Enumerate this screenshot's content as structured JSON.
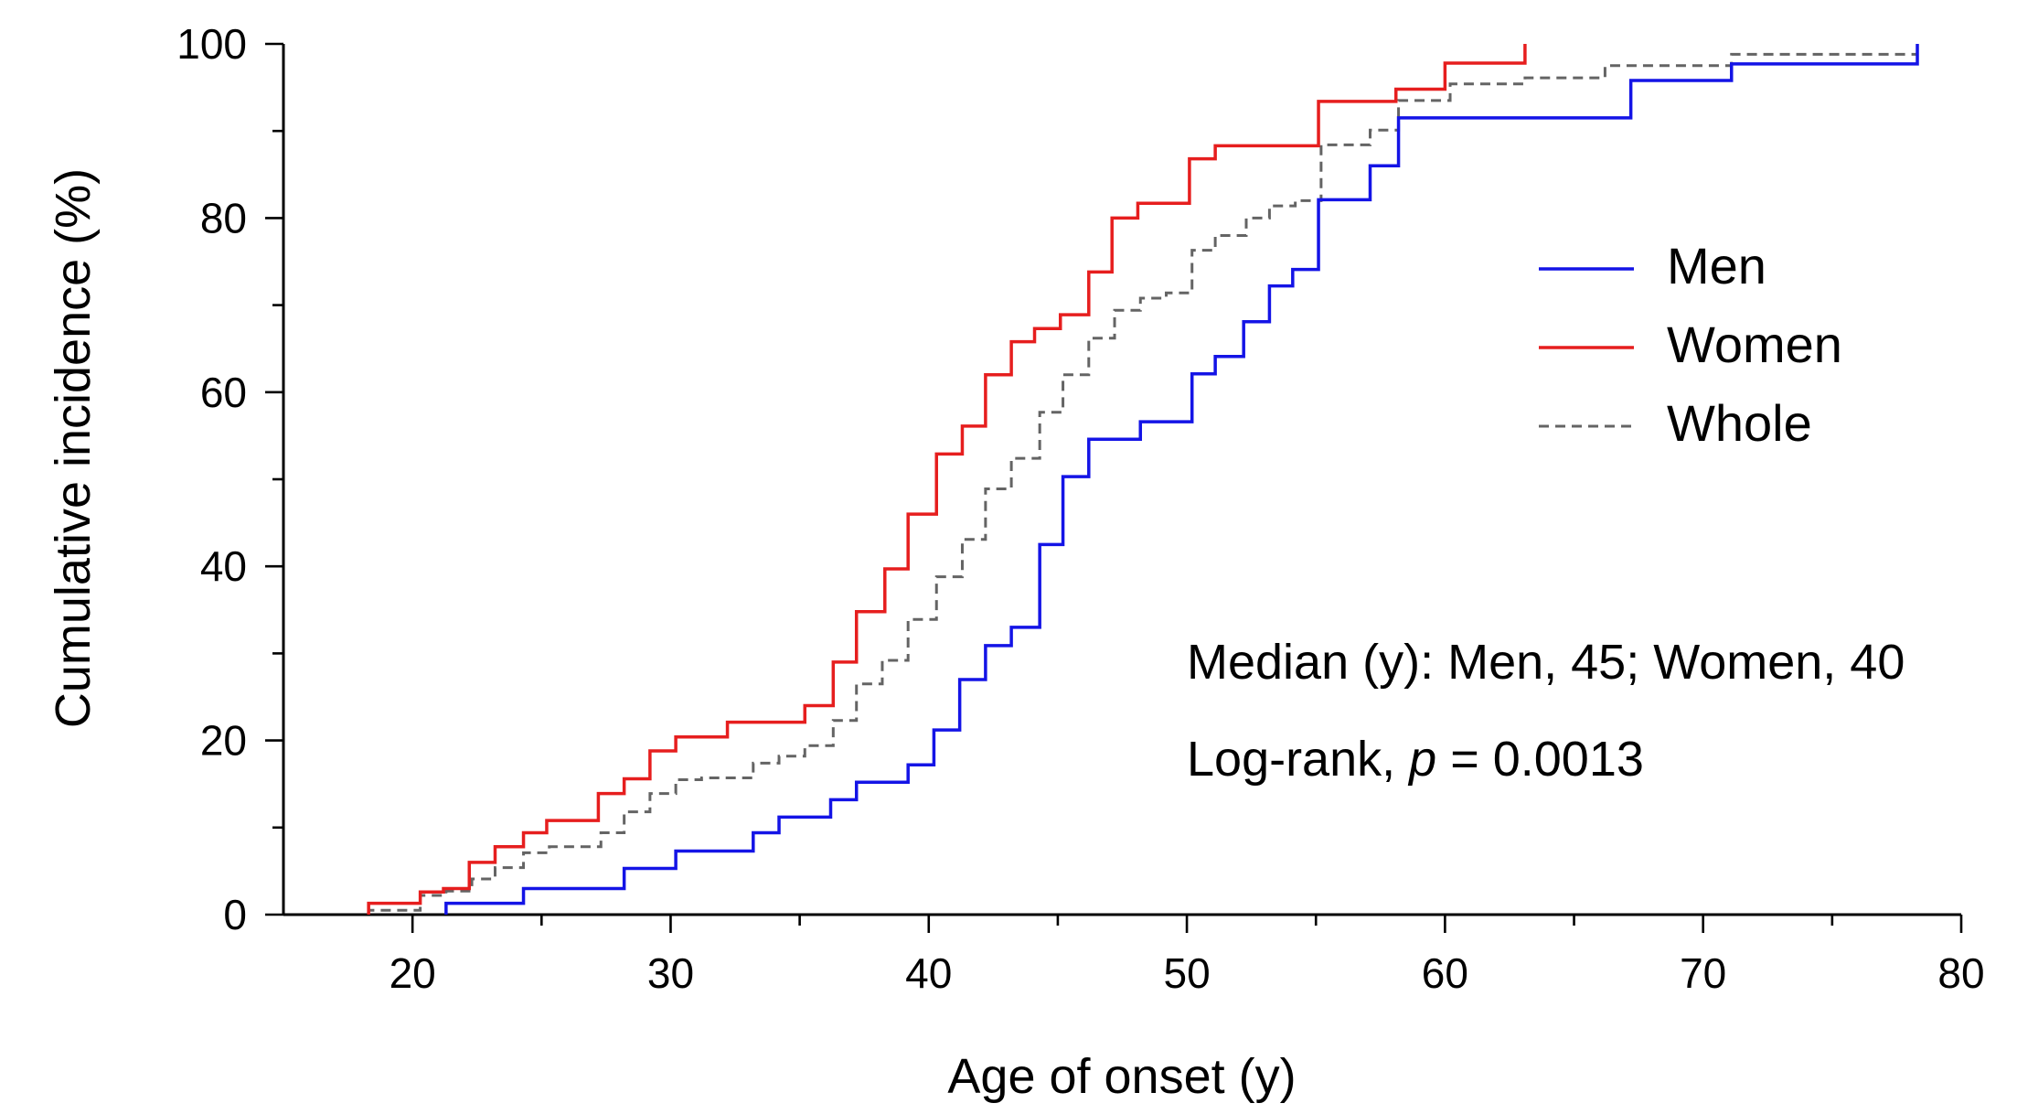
{
  "chart_data": {
    "type": "line",
    "step": true,
    "xlabel": "Age of onset (y)",
    "ylabel": "Cumulative incidence (%)",
    "xlim": [
      15,
      80
    ],
    "ylim": [
      0,
      100
    ],
    "xticks": [
      20,
      30,
      40,
      50,
      60,
      70,
      80
    ],
    "yticks": [
      0,
      20,
      40,
      60,
      80,
      100
    ],
    "xtick_labels": [
      "20",
      "30",
      "40",
      "50",
      "60",
      "70",
      "80"
    ],
    "ytick_labels": [
      "0",
      "20",
      "40",
      "60",
      "80",
      "100"
    ],
    "grid": false,
    "legend_position": "right",
    "series": [
      {
        "name": "Men",
        "color": "#1414e6",
        "dash": "solid",
        "x": [
          21.3,
          24.3,
          28.2,
          30.2,
          33.2,
          34.2,
          36.2,
          37.2,
          39.2,
          40.2,
          41.2,
          42.2,
          43.2,
          44.3,
          45.2,
          46.2,
          48.2,
          50.2,
          51.1,
          52.2,
          53.2,
          54.1,
          55.1,
          57.1,
          58.2,
          67.2,
          71.1,
          78.3
        ],
        "y": [
          1.3,
          3.0,
          5.3,
          7.3,
          9.4,
          11.2,
          13.2,
          15.2,
          17.2,
          21.2,
          27.0,
          30.9,
          33.0,
          42.5,
          50.3,
          54.6,
          56.6,
          62.1,
          64.1,
          68.1,
          72.2,
          74.1,
          82.1,
          86.0,
          91.5,
          95.8,
          97.7,
          100.0
        ]
      },
      {
        "name": "Women",
        "color": "#e61e1e",
        "dash": "solid",
        "x": [
          18.3,
          20.3,
          21.2,
          22.2,
          23.2,
          24.3,
          25.2,
          27.2,
          28.2,
          29.2,
          30.2,
          32.2,
          35.2,
          36.3,
          37.2,
          38.3,
          39.2,
          40.3,
          41.3,
          42.2,
          43.2,
          44.1,
          45.1,
          46.2,
          47.1,
          48.1,
          50.1,
          51.1,
          55.1,
          58.1,
          60.0,
          63.1
        ],
        "y": [
          1.3,
          2.6,
          3.0,
          6.0,
          7.8,
          9.4,
          10.8,
          13.9,
          15.6,
          18.8,
          20.4,
          22.1,
          24.0,
          29.0,
          34.8,
          39.7,
          46.0,
          52.9,
          56.1,
          62.0,
          65.8,
          67.3,
          68.9,
          73.8,
          80.0,
          81.7,
          86.8,
          88.3,
          93.4,
          94.8,
          97.8,
          100.0
        ]
      },
      {
        "name": "Whole",
        "color": "#646464",
        "dash": "dashed",
        "x": [
          18.3,
          20.3,
          21.3,
          22.3,
          23.2,
          24.3,
          25.3,
          27.3,
          28.2,
          29.2,
          30.2,
          31.2,
          33.2,
          34.2,
          35.2,
          36.3,
          37.2,
          38.2,
          39.2,
          40.3,
          41.3,
          42.2,
          43.2,
          44.3,
          45.2,
          46.2,
          47.2,
          48.2,
          49.2,
          50.2,
          51.1,
          52.3,
          53.2,
          54.2,
          55.2,
          57.1,
          58.2,
          60.2,
          63.1,
          66.2,
          71.1,
          78.3
        ],
        "y": [
          0.5,
          2.2,
          2.7,
          4.1,
          5.4,
          7.1,
          7.8,
          9.4,
          11.8,
          13.9,
          15.5,
          15.7,
          17.4,
          18.2,
          19.4,
          22.3,
          26.5,
          29.2,
          33.9,
          38.8,
          43.1,
          48.9,
          52.4,
          57.7,
          62.0,
          66.2,
          69.4,
          70.8,
          71.4,
          76.3,
          78.0,
          80.0,
          81.4,
          82.0,
          88.4,
          90.1,
          93.5,
          95.4,
          96.1,
          97.5,
          98.8,
          99.0
        ]
      }
    ],
    "annotations": {
      "median_text": "Median (y): Men, 45; Women, 40",
      "logrank_prefix": "Log-rank, ",
      "logrank_p": "p",
      "logrank_suffix": " = 0.0013"
    }
  }
}
